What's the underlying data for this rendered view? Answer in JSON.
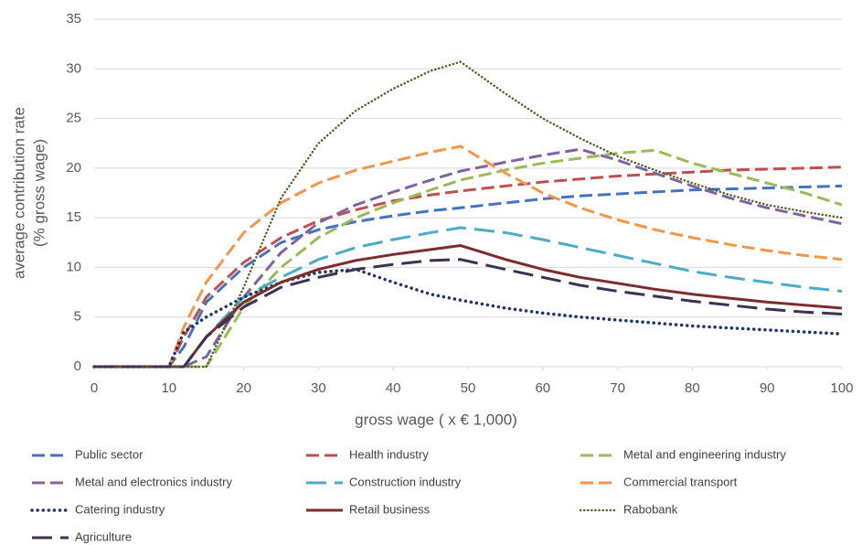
{
  "chart_data": {
    "type": "line",
    "xlabel": "gross wage ( x € 1,000)",
    "ylabel": [
      "average contribution rate",
      "(% gross wage)"
    ],
    "x": [
      0,
      10,
      12,
      15,
      20,
      25,
      30,
      35,
      40,
      45,
      49,
      55,
      60,
      65,
      70,
      75,
      80,
      85,
      90,
      95,
      100
    ],
    "xlim": [
      0,
      100
    ],
    "xticks": [
      0,
      10,
      20,
      30,
      40,
      50,
      60,
      70,
      80,
      90,
      100
    ],
    "ylim": [
      0,
      35
    ],
    "yticks": [
      0,
      5,
      10,
      15,
      20,
      25,
      30,
      35
    ],
    "grid": true,
    "series": [
      {
        "name": "Public sector",
        "color": "#4472c4",
        "style": "dashed",
        "values": [
          0,
          0,
          2,
          6.5,
          10,
          12.5,
          13.8,
          14.6,
          15.2,
          15.7,
          16,
          16.5,
          16.9,
          17.2,
          17.4,
          17.6,
          17.8,
          17.9,
          18,
          18.1,
          18.2
        ]
      },
      {
        "name": "Health industry",
        "color": "#c0504d",
        "style": "dashed",
        "values": [
          0,
          0,
          3,
          7,
          10.5,
          13,
          14.7,
          15.8,
          16.7,
          17.3,
          17.7,
          18.2,
          18.6,
          18.9,
          19.2,
          19.4,
          19.6,
          19.8,
          19.9,
          20,
          20.1
        ]
      },
      {
        "name": "Metal and engineering industry",
        "color": "#9bbb59",
        "style": "dashed",
        "values": [
          0,
          0,
          0,
          0,
          6,
          10,
          13,
          15,
          16.5,
          17.8,
          18.8,
          19.8,
          20.5,
          21,
          21.5,
          21.8,
          20.5,
          19.5,
          18.5,
          17.5,
          16.3
        ]
      },
      {
        "name": "Metal and electronics industry",
        "color": "#8064a2",
        "style": "dashed",
        "values": [
          0,
          0,
          0,
          1,
          7,
          11.5,
          14.5,
          16.3,
          17.6,
          18.8,
          19.7,
          20.6,
          21.3,
          21.9,
          20.8,
          19.5,
          18.2,
          17,
          16,
          15.2,
          14.4
        ]
      },
      {
        "name": "Construction industry",
        "color": "#4bacc6",
        "style": "longdash",
        "values": [
          0,
          0,
          0,
          3,
          7,
          9,
          10.8,
          12,
          12.8,
          13.5,
          14,
          13.5,
          12.8,
          12,
          11.2,
          10.4,
          9.6,
          9,
          8.5,
          8,
          7.6
        ]
      },
      {
        "name": "Commercial transport",
        "color": "#f79646",
        "style": "dashed",
        "values": [
          0,
          0,
          4,
          8.5,
          13.5,
          16.5,
          18.5,
          19.8,
          20.7,
          21.6,
          22.2,
          19.5,
          17.5,
          16,
          14.8,
          13.8,
          13,
          12.3,
          11.7,
          11.2,
          10.8
        ]
      },
      {
        "name": "Catering industry",
        "color": "#1f3864",
        "style": "dotted",
        "values": [
          0,
          0,
          3.5,
          5,
          7,
          8.5,
          9.5,
          9.8,
          8.5,
          7.3,
          6.7,
          5.9,
          5.4,
          5,
          4.7,
          4.4,
          4.1,
          3.9,
          3.7,
          3.5,
          3.3
        ]
      },
      {
        "name": "Retail business",
        "color": "#7b2c2c",
        "style": "solid",
        "values": [
          0,
          0,
          0,
          3,
          6.5,
          8.5,
          9.8,
          10.7,
          11.3,
          11.8,
          12.2,
          10.8,
          9.8,
          9,
          8.4,
          7.8,
          7.3,
          6.9,
          6.5,
          6.2,
          5.9
        ]
      },
      {
        "name": "Rabobank",
        "color": "#4f6228",
        "style": "finedot",
        "values": [
          0,
          0,
          0,
          0,
          8,
          17,
          22.5,
          25.8,
          28,
          29.8,
          30.7,
          27.5,
          25,
          23,
          21.2,
          19.8,
          18.5,
          17.3,
          16.3,
          15.6,
          15
        ]
      },
      {
        "name": "Agriculture",
        "color": "#3f3151",
        "style": "longdash",
        "values": [
          0,
          0,
          0,
          3,
          6,
          8,
          9,
          9.8,
          10.3,
          10.7,
          10.8,
          9.8,
          9,
          8.2,
          7.6,
          7.1,
          6.6,
          6.2,
          5.8,
          5.5,
          5.3
        ]
      }
    ]
  }
}
